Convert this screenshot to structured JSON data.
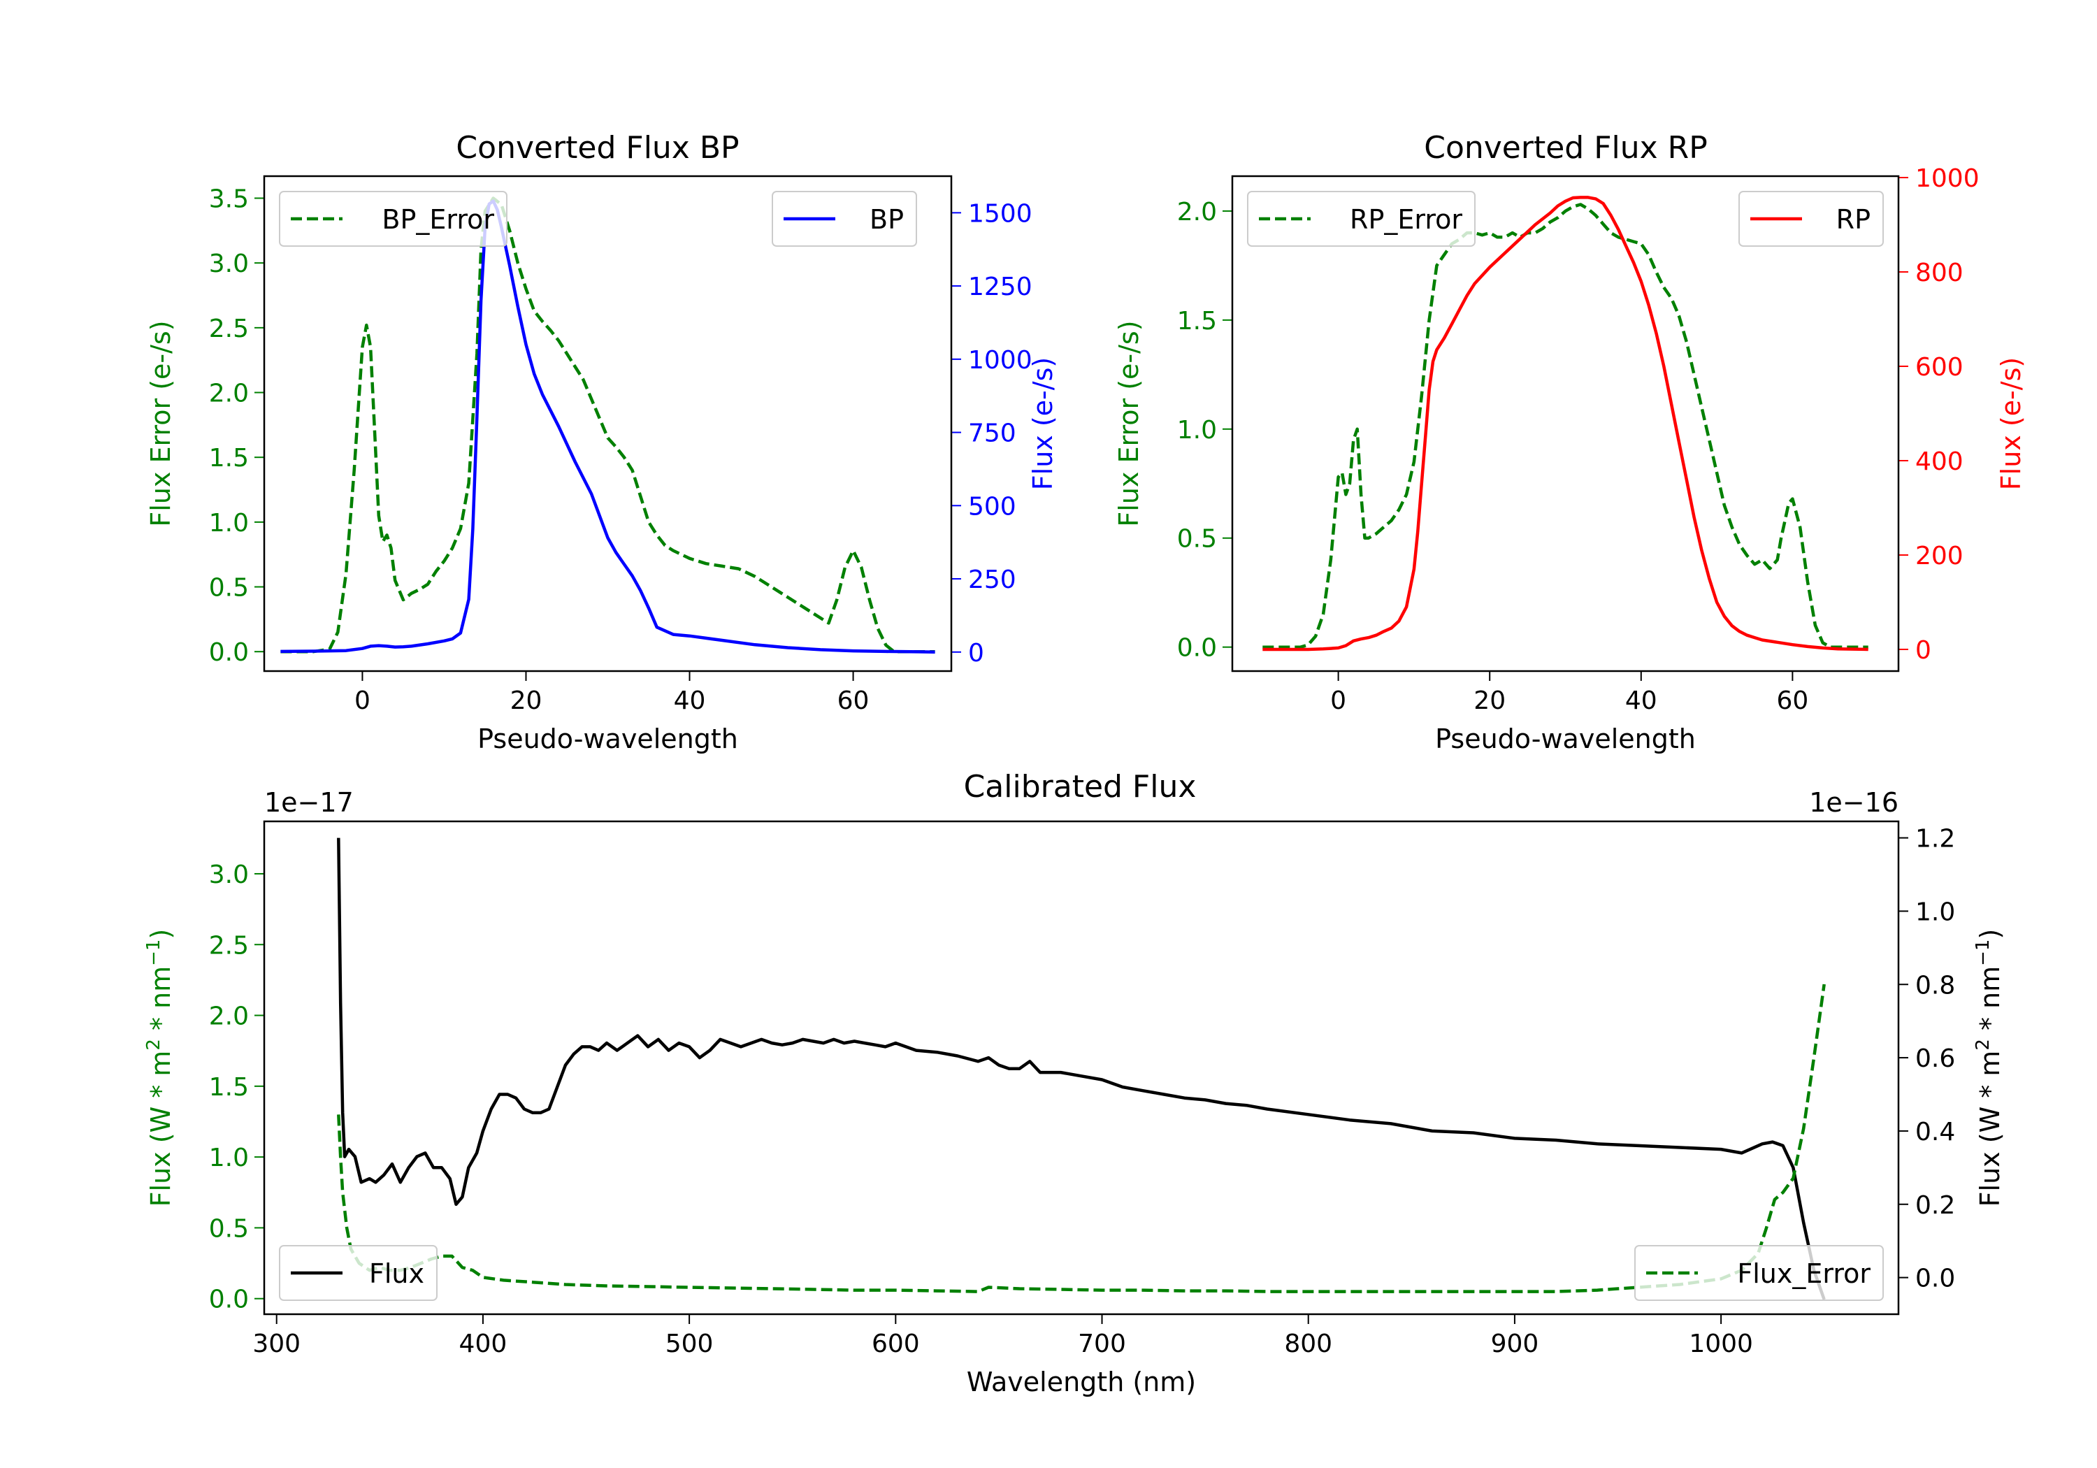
{
  "figure": {
    "bp_panel": {
      "title": "Converted Flux BP"
    },
    "rp_panel": {
      "title": "Converted Flux RP"
    },
    "cal_panel": {
      "title": "Calibrated Flux"
    }
  },
  "colors": {
    "error": "#008000",
    "bp": "#0000ff",
    "rp": "#ff0000",
    "flux": "#000000"
  },
  "chart_data": [
    {
      "type": "line",
      "id": "bp",
      "title": "Converted Flux BP",
      "xlabel": "Pseudo-wavelength",
      "xlim": [
        -12,
        72
      ],
      "xticks": [
        0,
        20,
        40,
        60
      ],
      "left_axis": {
        "label": "Flux Error (e-/s)",
        "ylim": [
          -0.15,
          3.67
        ],
        "ticks": [
          0.0,
          0.5,
          1.0,
          1.5,
          2.0,
          2.5,
          3.0,
          3.5
        ],
        "tick_labels": [
          "0.0",
          "0.5",
          "1.0",
          "1.5",
          "2.0",
          "2.5",
          "3.0",
          "3.5"
        ]
      },
      "right_axis": {
        "label": "Flux (e-/s)",
        "ylim": [
          -65,
          1625
        ],
        "ticks": [
          0,
          250,
          500,
          750,
          1000,
          1250,
          1500
        ],
        "tick_labels": [
          "0",
          "250",
          "500",
          "750",
          "1000",
          "1250",
          "1500"
        ]
      },
      "series": [
        {
          "name": "BP_Error",
          "axis": "left",
          "style": "dashed",
          "color": "#008000",
          "x": [
            -10,
            -6,
            -4,
            -3,
            -2,
            -1,
            0,
            0.5,
            1,
            1.5,
            2,
            2.5,
            3,
            3.5,
            4,
            5,
            6,
            7,
            8,
            9,
            10,
            11,
            12,
            13,
            14,
            14.5,
            15,
            16,
            17,
            18,
            19,
            20,
            21,
            22,
            23,
            24,
            25,
            26,
            27,
            28,
            29,
            30,
            31,
            32,
            33,
            34,
            35,
            36,
            37,
            38,
            40,
            42,
            44,
            46,
            48,
            50,
            52,
            54,
            56,
            57,
            58,
            59,
            60,
            61,
            62,
            63,
            64,
            65,
            67,
            70
          ],
          "y": [
            0,
            0,
            0.02,
            0.15,
            0.6,
            1.4,
            2.35,
            2.52,
            2.35,
            1.7,
            1.05,
            0.85,
            0.9,
            0.8,
            0.55,
            0.4,
            0.45,
            0.48,
            0.52,
            0.62,
            0.7,
            0.8,
            0.95,
            1.3,
            2.3,
            3.1,
            3.4,
            3.5,
            3.45,
            3.25,
            3.0,
            2.8,
            2.63,
            2.55,
            2.48,
            2.4,
            2.3,
            2.2,
            2.1,
            1.95,
            1.8,
            1.65,
            1.58,
            1.5,
            1.4,
            1.2,
            1.0,
            0.9,
            0.82,
            0.78,
            0.72,
            0.68,
            0.66,
            0.64,
            0.58,
            0.5,
            0.42,
            0.34,
            0.26,
            0.22,
            0.4,
            0.65,
            0.78,
            0.65,
            0.4,
            0.18,
            0.05,
            0,
            0,
            0
          ]
        },
        {
          "name": "BP",
          "axis": "right",
          "style": "solid",
          "color": "#0000ff",
          "x": [
            -10,
            -6,
            -2,
            0,
            1,
            2,
            3,
            4,
            5,
            6,
            8,
            10,
            11,
            12,
            13,
            13.5,
            14,
            14.5,
            15,
            15.5,
            16,
            16.5,
            17,
            18,
            19,
            20,
            21,
            22,
            24,
            26,
            28,
            30,
            31,
            32,
            33,
            34,
            35,
            36,
            38,
            40,
            44,
            48,
            52,
            56,
            60,
            64,
            68,
            70
          ],
          "y": [
            2,
            3,
            5,
            12,
            20,
            22,
            20,
            17,
            18,
            20,
            28,
            38,
            45,
            65,
            180,
            420,
            800,
            1200,
            1450,
            1530,
            1540,
            1510,
            1450,
            1320,
            1180,
            1050,
            950,
            880,
            770,
            650,
            540,
            390,
            340,
            300,
            260,
            210,
            150,
            85,
            60,
            55,
            40,
            25,
            15,
            8,
            4,
            2,
            1,
            0
          ]
        }
      ],
      "legend": [
        {
          "label": "BP_Error",
          "location": "upper left"
        },
        {
          "label": "BP",
          "location": "upper right"
        }
      ]
    },
    {
      "type": "line",
      "id": "rp",
      "title": "Converted Flux RP",
      "xlabel": "Pseudo-wavelength",
      "xlim": [
        -14,
        74
      ],
      "xticks": [
        0,
        20,
        40,
        60
      ],
      "left_axis": {
        "label": "Flux Error (e-/s)",
        "ylim": [
          -0.11,
          2.16
        ],
        "ticks": [
          0.0,
          0.5,
          1.0,
          1.5,
          2.0
        ],
        "tick_labels": [
          "0.0",
          "0.5",
          "1.0",
          "1.5",
          "2.0"
        ]
      },
      "right_axis": {
        "label": "Flux (e-/s)",
        "ylim": [
          -46,
          1003
        ],
        "ticks": [
          0,
          200,
          400,
          600,
          800,
          1000
        ],
        "tick_labels": [
          "0",
          "200",
          "400",
          "600",
          "800",
          "1000"
        ]
      },
      "series": [
        {
          "name": "RP_Error",
          "axis": "left",
          "style": "dashed",
          "color": "#008000",
          "x": [
            -10,
            -5,
            -4,
            -3,
            -2,
            -1,
            0,
            0.5,
            1,
            1.5,
            2,
            2.5,
            3,
            3.5,
            4,
            5,
            6,
            7,
            8,
            9,
            10,
            11,
            12,
            13,
            14,
            15,
            16,
            17,
            18,
            19,
            20,
            21,
            22,
            23,
            24,
            25,
            26,
            27,
            28,
            29,
            30,
            31,
            32,
            33,
            34,
            35,
            36,
            37,
            38,
            39,
            40,
            41,
            42,
            43,
            44,
            45,
            46,
            47,
            48,
            49,
            50,
            51,
            52,
            53,
            54,
            55,
            56,
            57,
            58,
            58.5,
            59,
            59.5,
            60,
            61,
            62,
            63,
            64,
            65,
            67,
            70
          ],
          "y": [
            0,
            0,
            0.01,
            0.05,
            0.15,
            0.4,
            0.78,
            0.8,
            0.7,
            0.75,
            0.95,
            1.0,
            0.7,
            0.5,
            0.5,
            0.52,
            0.55,
            0.58,
            0.63,
            0.7,
            0.85,
            1.15,
            1.5,
            1.75,
            1.8,
            1.85,
            1.87,
            1.9,
            1.9,
            1.89,
            1.9,
            1.88,
            1.88,
            1.9,
            1.88,
            1.9,
            1.9,
            1.92,
            1.95,
            1.97,
            2.0,
            2.02,
            2.03,
            2.01,
            1.98,
            1.94,
            1.9,
            1.88,
            1.87,
            1.86,
            1.85,
            1.8,
            1.72,
            1.65,
            1.6,
            1.52,
            1.4,
            1.25,
            1.1,
            0.95,
            0.8,
            0.65,
            0.55,
            0.47,
            0.42,
            0.38,
            0.4,
            0.36,
            0.4,
            0.5,
            0.58,
            0.66,
            0.68,
            0.55,
            0.3,
            0.1,
            0.02,
            0,
            0,
            0
          ]
        },
        {
          "name": "RP",
          "axis": "right",
          "style": "solid",
          "color": "#ff0000",
          "x": [
            -10,
            -4,
            -2,
            0,
            1,
            2,
            3,
            4,
            5,
            6,
            7,
            8,
            9,
            10,
            10.5,
            11,
            11.5,
            12,
            12.5,
            13,
            14,
            15,
            16,
            17,
            18,
            20,
            22,
            24,
            26,
            28,
            29,
            30,
            31,
            32,
            33,
            34,
            35,
            36,
            37,
            38,
            39,
            40,
            41,
            42,
            43,
            44,
            45,
            46,
            47,
            48,
            49,
            50,
            51,
            52,
            53,
            54,
            55,
            56,
            58,
            60,
            62,
            64,
            66,
            70
          ],
          "y": [
            0,
            0,
            1,
            3,
            8,
            18,
            22,
            25,
            30,
            38,
            45,
            60,
            90,
            170,
            250,
            350,
            450,
            550,
            610,
            635,
            660,
            690,
            720,
            750,
            775,
            810,
            840,
            870,
            900,
            925,
            940,
            950,
            957,
            958,
            958,
            955,
            945,
            920,
            890,
            855,
            820,
            780,
            730,
            670,
            600,
            520,
            440,
            360,
            280,
            210,
            150,
            100,
            70,
            50,
            38,
            30,
            25,
            20,
            15,
            10,
            6,
            3,
            1,
            0
          ]
        }
      ],
      "legend": [
        {
          "label": "RP_Error",
          "location": "upper left"
        },
        {
          "label": "RP",
          "location": "upper right"
        }
      ]
    },
    {
      "type": "line",
      "id": "calibrated",
      "title": "Calibrated Flux",
      "xlabel": "Wavelength (nm)",
      "xlim": [
        294,
        1086
      ],
      "xticks": [
        300,
        400,
        500,
        600,
        700,
        800,
        900,
        1000
      ],
      "left_axis": {
        "label": "Flux (W * m^2 * nm^-1)",
        "offset_text": "1e−17",
        "ylim": [
          -0.11,
          3.37
        ],
        "ticks": [
          0.0,
          0.5,
          1.0,
          1.5,
          2.0,
          2.5,
          3.0
        ],
        "tick_labels": [
          "0.0",
          "0.5",
          "1.0",
          "1.5",
          "2.0",
          "2.5",
          "3.0"
        ]
      },
      "right_axis": {
        "label": "Flux (W * m^2 * nm^-1)",
        "offset_text": "1e−16",
        "ylim": [
          -0.1,
          1.245
        ],
        "ticks": [
          0.0,
          0.2,
          0.4,
          0.6,
          0.8,
          1.0,
          1.2
        ],
        "tick_labels": [
          "0.0",
          "0.2",
          "0.4",
          "0.6",
          "0.8",
          "1.0",
          "1.2"
        ]
      },
      "series": [
        {
          "name": "Flux",
          "axis": "right",
          "style": "solid",
          "color": "#000000",
          "x": [
            330,
            331,
            332,
            333,
            335,
            338,
            341,
            345,
            348,
            352,
            356,
            360,
            364,
            368,
            372,
            376,
            380,
            384,
            387,
            390,
            393,
            397,
            400,
            404,
            408,
            412,
            416,
            420,
            424,
            428,
            432,
            436,
            440,
            444,
            448,
            452,
            456,
            460,
            465,
            470,
            475,
            480,
            485,
            490,
            495,
            500,
            505,
            510,
            515,
            520,
            525,
            530,
            535,
            540,
            545,
            550,
            555,
            560,
            565,
            570,
            575,
            580,
            585,
            590,
            595,
            600,
            605,
            610,
            620,
            630,
            640,
            645,
            650,
            655,
            660,
            665,
            670,
            680,
            690,
            700,
            710,
            720,
            730,
            740,
            750,
            760,
            770,
            780,
            800,
            820,
            840,
            860,
            880,
            900,
            920,
            940,
            960,
            980,
            1000,
            1010,
            1020,
            1025,
            1030,
            1035,
            1040,
            1045,
            1050
          ],
          "y": [
            1.2,
            0.75,
            0.45,
            0.33,
            0.35,
            0.33,
            0.26,
            0.27,
            0.26,
            0.28,
            0.31,
            0.26,
            0.3,
            0.33,
            0.34,
            0.3,
            0.3,
            0.27,
            0.2,
            0.22,
            0.3,
            0.34,
            0.4,
            0.46,
            0.5,
            0.5,
            0.49,
            0.46,
            0.45,
            0.45,
            0.46,
            0.52,
            0.58,
            0.61,
            0.63,
            0.63,
            0.62,
            0.64,
            0.62,
            0.64,
            0.66,
            0.63,
            0.65,
            0.62,
            0.64,
            0.63,
            0.6,
            0.62,
            0.65,
            0.64,
            0.63,
            0.64,
            0.65,
            0.64,
            0.635,
            0.64,
            0.65,
            0.645,
            0.64,
            0.65,
            0.64,
            0.645,
            0.64,
            0.635,
            0.63,
            0.64,
            0.63,
            0.62,
            0.615,
            0.605,
            0.59,
            0.6,
            0.58,
            0.57,
            0.57,
            0.59,
            0.56,
            0.56,
            0.55,
            0.54,
            0.52,
            0.51,
            0.5,
            0.49,
            0.485,
            0.475,
            0.47,
            0.46,
            0.445,
            0.43,
            0.42,
            0.4,
            0.395,
            0.38,
            0.375,
            0.365,
            0.36,
            0.355,
            0.35,
            0.34,
            0.365,
            0.37,
            0.36,
            0.3,
            0.15,
            0.02,
            -0.06
          ]
        },
        {
          "name": "Flux_Error",
          "axis": "left",
          "style": "dashed",
          "color": "#008000",
          "x": [
            330,
            331,
            332,
            334,
            336,
            340,
            345,
            350,
            355,
            360,
            365,
            370,
            375,
            380,
            385,
            390,
            395,
            400,
            410,
            420,
            430,
            440,
            460,
            480,
            500,
            520,
            540,
            560,
            580,
            600,
            620,
            640,
            645,
            660,
            680,
            700,
            720,
            740,
            760,
            780,
            800,
            820,
            840,
            860,
            880,
            900,
            920,
            940,
            960,
            980,
            1000,
            1010,
            1018,
            1022,
            1026,
            1030,
            1035,
            1040,
            1045,
            1050
          ],
          "y": [
            1.3,
            1.0,
            0.75,
            0.5,
            0.35,
            0.25,
            0.2,
            0.22,
            0.2,
            0.2,
            0.22,
            0.25,
            0.28,
            0.3,
            0.3,
            0.22,
            0.2,
            0.15,
            0.13,
            0.12,
            0.11,
            0.1,
            0.09,
            0.085,
            0.08,
            0.075,
            0.07,
            0.065,
            0.06,
            0.06,
            0.055,
            0.05,
            0.08,
            0.07,
            0.065,
            0.06,
            0.06,
            0.055,
            0.055,
            0.05,
            0.05,
            0.05,
            0.05,
            0.05,
            0.05,
            0.05,
            0.05,
            0.06,
            0.08,
            0.1,
            0.14,
            0.2,
            0.32,
            0.5,
            0.7,
            0.75,
            0.85,
            1.2,
            1.7,
            2.22
          ]
        }
      ],
      "legend": [
        {
          "label": "Flux",
          "location": "lower left"
        },
        {
          "label": "Flux_Error",
          "location": "lower right"
        }
      ]
    }
  ]
}
